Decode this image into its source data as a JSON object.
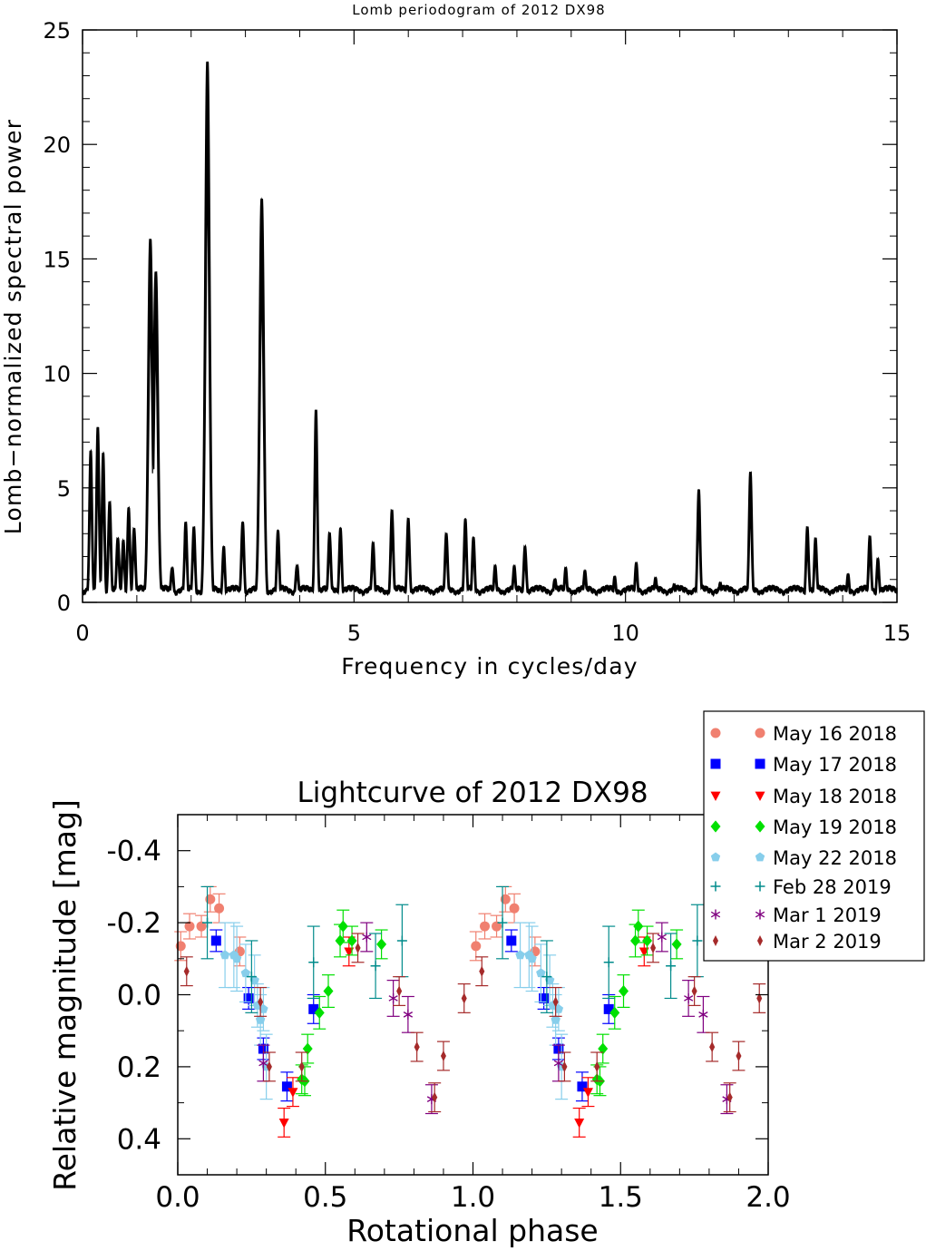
{
  "chart_data": [
    {
      "type": "area",
      "title": "Lomb periodogram of 2012 DX98",
      "xlabel": "Frequency in cycles/day",
      "ylabel": "Lomb−normalized spectral power",
      "xlim": [
        0,
        15
      ],
      "ylim": [
        0,
        25
      ],
      "xticks": [
        0,
        5,
        10,
        15
      ],
      "yticks": [
        0,
        5,
        10,
        15,
        20,
        25
      ],
      "xtick_labels": [
        "0",
        "5",
        "10",
        "15"
      ],
      "ytick_labels": [
        "0",
        "5",
        "10",
        "15",
        "20",
        "25"
      ],
      "peaks": [
        [
          0.15,
          6.5
        ],
        [
          0.28,
          7.6
        ],
        [
          0.38,
          6.4
        ],
        [
          0.5,
          4.4
        ],
        [
          0.65,
          2.8
        ],
        [
          0.75,
          2.6
        ],
        [
          0.85,
          4.0
        ],
        [
          0.95,
          3.2
        ],
        [
          1.25,
          15.8
        ],
        [
          1.35,
          14.4
        ],
        [
          1.65,
          1.5
        ],
        [
          1.9,
          3.4
        ],
        [
          2.05,
          3.2
        ],
        [
          2.3,
          23.5
        ],
        [
          2.6,
          2.3
        ],
        [
          2.95,
          3.5
        ],
        [
          3.3,
          17.5
        ],
        [
          3.6,
          3.0
        ],
        [
          3.95,
          1.6
        ],
        [
          4.3,
          8.3
        ],
        [
          4.55,
          3.0
        ],
        [
          4.75,
          3.1
        ],
        [
          5.35,
          2.5
        ],
        [
          5.7,
          4.0
        ],
        [
          6.0,
          3.6
        ],
        [
          6.7,
          3.0
        ],
        [
          7.05,
          3.5
        ],
        [
          7.2,
          2.7
        ],
        [
          7.6,
          1.5
        ],
        [
          7.95,
          1.5
        ],
        [
          8.15,
          2.4
        ],
        [
          8.7,
          1.0
        ],
        [
          8.9,
          1.4
        ],
        [
          9.25,
          1.3
        ],
        [
          9.8,
          1.0
        ],
        [
          10.2,
          1.6
        ],
        [
          10.55,
          1.0
        ],
        [
          10.9,
          0.7
        ],
        [
          11.35,
          4.8
        ],
        [
          11.75,
          0.8
        ],
        [
          12.3,
          5.7
        ],
        [
          13.35,
          3.2
        ],
        [
          13.5,
          2.7
        ],
        [
          14.1,
          1.1
        ],
        [
          14.5,
          2.8
        ],
        [
          14.65,
          1.8
        ]
      ]
    },
    {
      "type": "scatter",
      "title": "Lightcurve of 2012 DX98",
      "xlabel": "Rotational phase",
      "ylabel": "Relative magnitude [mag]",
      "xlim": [
        0.0,
        2.0
      ],
      "ylim": [
        0.5,
        -0.5
      ],
      "xticks": [
        0.0,
        0.5,
        1.0,
        1.5,
        2.0
      ],
      "xtick_labels": [
        "0.0",
        "0.5",
        "1.0",
        "1.5",
        "2.0"
      ],
      "yticks": [
        -0.4,
        -0.2,
        0.0,
        0.2,
        0.4
      ],
      "ytick_labels": [
        "-0.4",
        "-0.2",
        "0.0",
        "0.2",
        "0.4"
      ],
      "legend_position": "top-right",
      "series": [
        {
          "name": "May 16 2018",
          "color": "#f08070",
          "marker": "circle",
          "points": [
            [
              0.01,
              -0.135,
              0.04
            ],
            [
              0.04,
              -0.19,
              0.035
            ],
            [
              0.08,
              -0.19,
              0.03
            ],
            [
              0.11,
              -0.265,
              0.035
            ],
            [
              0.14,
              -0.24,
              0.04
            ],
            [
              0.21,
              -0.12,
              0.04
            ]
          ]
        },
        {
          "name": "May 17 2018",
          "color": "#0000ff",
          "marker": "square",
          "points": [
            [
              0.13,
              -0.15,
              0.03
            ],
            [
              0.24,
              0.01,
              0.03
            ],
            [
              0.29,
              0.15,
              0.03
            ],
            [
              0.37,
              0.255,
              0.04
            ],
            [
              0.46,
              0.04,
              0.04
            ]
          ]
        },
        {
          "name": "May 18 2018",
          "color": "#ff0000",
          "marker": "triangle-down",
          "points": [
            [
              0.36,
              0.355,
              0.04
            ],
            [
              0.39,
              0.27,
              0.04
            ],
            [
              0.58,
              -0.12,
              0.04
            ]
          ]
        },
        {
          "name": "May 19 2018",
          "color": "#00e000",
          "marker": "diamond",
          "points": [
            [
              0.42,
              0.235,
              0.04
            ],
            [
              0.44,
              0.15,
              0.04
            ],
            [
              0.48,
              0.05,
              0.045
            ],
            [
              0.51,
              -0.01,
              0.045
            ],
            [
              0.55,
              -0.15,
              0.045
            ],
            [
              0.56,
              -0.19,
              0.045
            ],
            [
              0.59,
              -0.15,
              0.04
            ],
            [
              0.69,
              -0.14,
              0.04
            ],
            [
              0.43,
              0.24,
              0.04
            ]
          ]
        },
        {
          "name": "May 22 2018",
          "color": "#87ceeb",
          "marker": "pentagon",
          "points": [
            [
              0.16,
              -0.11,
              0.09
            ],
            [
              0.19,
              -0.11,
              0.09
            ],
            [
              0.2,
              -0.1,
              0.09
            ],
            [
              0.23,
              -0.06,
              0.08
            ],
            [
              0.26,
              -0.04,
              0.07
            ],
            [
              0.27,
              0.03,
              0.06
            ],
            [
              0.28,
              0.07,
              0.07
            ],
            [
              0.29,
              0.04,
              0.06
            ],
            [
              0.3,
              0.2,
              0.09
            ]
          ]
        },
        {
          "name": "Feb 28 2019",
          "color": "#008b8b",
          "marker": "plus",
          "points": [
            [
              0.1,
              -0.2,
              0.1
            ],
            [
              0.25,
              -0.05,
              0.1
            ],
            [
              0.46,
              -0.09,
              0.1
            ],
            [
              0.67,
              -0.08,
              0.09
            ],
            [
              0.76,
              -0.15,
              0.1
            ]
          ]
        },
        {
          "name": "Mar 1 2019",
          "color": "#800080",
          "marker": "star",
          "points": [
            [
              0.29,
              0.19,
              0.05
            ],
            [
              0.64,
              -0.16,
              0.04
            ],
            [
              0.73,
              0.01,
              0.05
            ],
            [
              0.78,
              0.055,
              0.05
            ],
            [
              0.86,
              0.29,
              0.04
            ]
          ]
        },
        {
          "name": "Mar 2 2019",
          "color": "#a52a2a",
          "marker": "diamond-thin",
          "points": [
            [
              0.03,
              -0.065,
              0.04
            ],
            [
              0.28,
              0.02,
              0.04
            ],
            [
              0.31,
              0.2,
              0.04
            ],
            [
              0.42,
              0.2,
              0.04
            ],
            [
              0.61,
              -0.13,
              0.04
            ],
            [
              0.75,
              -0.01,
              0.04
            ],
            [
              0.81,
              0.145,
              0.04
            ],
            [
              0.87,
              0.285,
              0.04
            ],
            [
              0.9,
              0.17,
              0.04
            ],
            [
              0.97,
              0.01,
              0.04
            ]
          ]
        }
      ]
    }
  ]
}
